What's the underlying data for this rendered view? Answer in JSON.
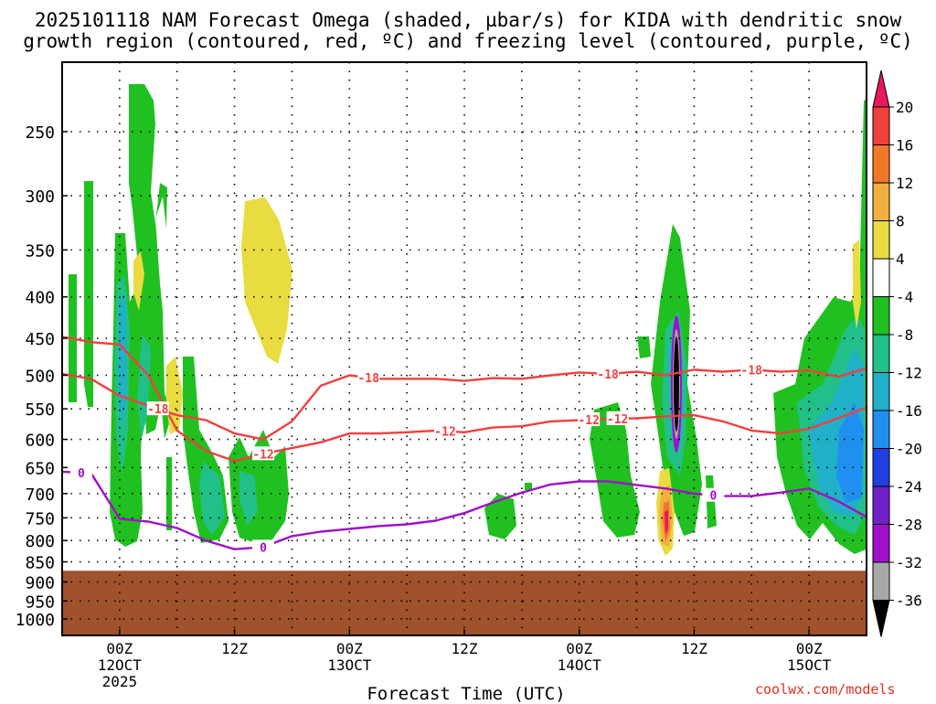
{
  "title_line1": "2025101118 NAM Forecast Omega (shaded, µbar/s) for KIDA with dendritic snow",
  "title_line2": "growth region (contoured, red, ºC) and freezing level (contoured, purple, ºC)",
  "credit": "coolwx.com/models",
  "chart_data": {
    "type": "area",
    "title": "2025101118 NAM Forecast Omega (shaded, µbar/s) for KIDA with dendritic snow growth region (contoured, red, ºC) and freezing level (contoured, purple, ºC)",
    "xlabel": "Forecast Time (UTC)",
    "ylabel": "",
    "y_scale": "log-pressure",
    "y_reversed": true,
    "ylim": [
      1000,
      200
    ],
    "y_ticks": [
      250,
      300,
      350,
      400,
      450,
      500,
      550,
      600,
      650,
      700,
      750,
      800,
      850,
      900,
      950,
      1000
    ],
    "x_ticks": [
      {
        "hour": 6,
        "label": "00Z",
        "sub": "12OCT",
        "sub2": "2025"
      },
      {
        "hour": 18,
        "label": "12Z",
        "sub": "",
        "sub2": ""
      },
      {
        "hour": 30,
        "label": "00Z",
        "sub": "13OCT",
        "sub2": ""
      },
      {
        "hour": 42,
        "label": "12Z",
        "sub": "",
        "sub2": ""
      },
      {
        "hour": 54,
        "label": "00Z",
        "sub": "14OCT",
        "sub2": ""
      },
      {
        "hour": 66,
        "label": "12Z",
        "sub": "",
        "sub2": ""
      },
      {
        "hour": 78,
        "label": "00Z",
        "sub": "15OCT",
        "sub2": ""
      }
    ],
    "xlim_hours": [
      0,
      84
    ],
    "grid": true,
    "ground_level_hpa": 845,
    "ground_color": "#a0522d",
    "colorbar": {
      "levels": [
        20,
        16,
        12,
        8,
        4,
        -4,
        -8,
        -12,
        -16,
        -20,
        -24,
        -28,
        -32,
        -36
      ],
      "colors": [
        "#e8185c",
        "#f0403c",
        "#f07828",
        "#f0b040",
        "#e8dc40",
        "#ffffff",
        "#20c020",
        "#20c088",
        "#20b0c8",
        "#2090f0",
        "#2040e0",
        "#7020c8",
        "#a010c8",
        "#a8a8a8",
        "#000000"
      ]
    },
    "series": [
      {
        "name": "-18",
        "color": "#f04040",
        "x": [
          0,
          3,
          6,
          9,
          12,
          15,
          18,
          21,
          24,
          27,
          30,
          33,
          36,
          39,
          42,
          45,
          48,
          51,
          54,
          57,
          60,
          63,
          66,
          69,
          72,
          75,
          78,
          81,
          84
        ],
        "y": [
          498,
          505,
          530,
          545,
          560,
          568,
          590,
          600,
          570,
          515,
          500,
          505,
          505,
          505,
          508,
          504,
          505,
          500,
          496,
          498,
          495,
          500,
          492,
          495,
          492,
          495,
          493,
          502,
          490
        ]
      },
      {
        "name": "-12",
        "color": "#f04040",
        "x": [
          0,
          3,
          6,
          9,
          12,
          15,
          18,
          21,
          24,
          27,
          30,
          33,
          36,
          39,
          42,
          45,
          48,
          51,
          54,
          57,
          60,
          63,
          66,
          69,
          72,
          75,
          78,
          81,
          84
        ],
        "y": [
          448,
          455,
          458,
          500,
          585,
          620,
          638,
          625,
          615,
          605,
          590,
          590,
          588,
          585,
          588,
          580,
          578,
          570,
          568,
          566,
          565,
          562,
          560,
          570,
          585,
          590,
          582,
          565,
          548
        ]
      },
      {
        "name": "0",
        "color": "#a010c8",
        "x": [
          0,
          3,
          6,
          9,
          12,
          15,
          18,
          21,
          24,
          27,
          30,
          33,
          36,
          39,
          42,
          45,
          48,
          51,
          54,
          57,
          60,
          63,
          66,
          69,
          72,
          75,
          78,
          81,
          84
        ],
        "y": [
          658,
          660,
          752,
          758,
          772,
          800,
          820,
          815,
          790,
          780,
          774,
          768,
          764,
          756,
          740,
          718,
          698,
          682,
          676,
          676,
          683,
          690,
          700,
          705,
          705,
          698,
          690,
          715,
          748
        ]
      }
    ]
  }
}
